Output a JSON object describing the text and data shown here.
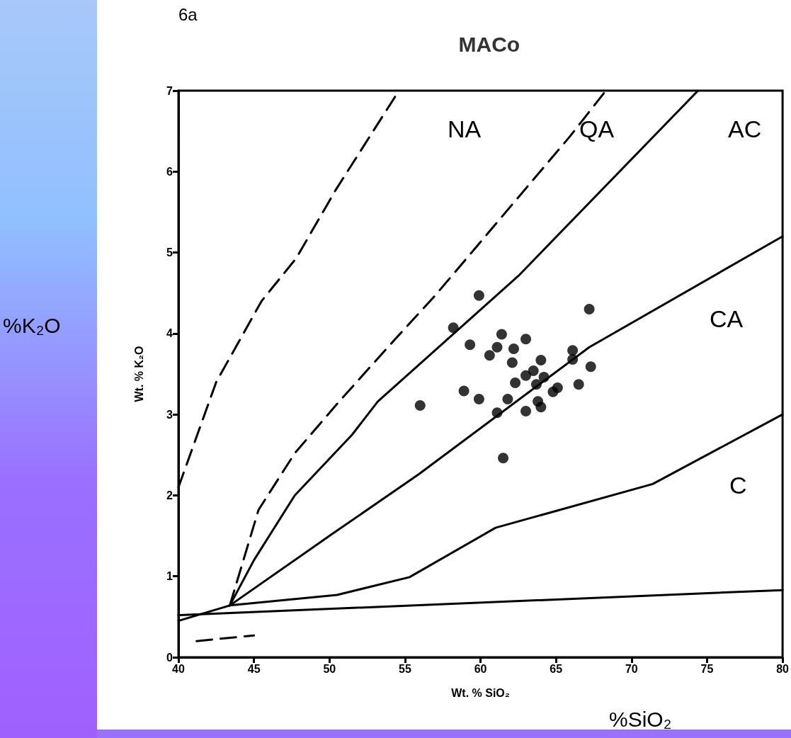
{
  "chart_data": {
    "type": "scatter",
    "title": "MACo",
    "xlabel": "Wt. % SiO₂",
    "ylabel": "Wt. % K₂O",
    "xlim": [
      40,
      80
    ],
    "xticks": [
      40,
      45,
      50,
      55,
      60,
      65,
      70,
      75,
      80
    ],
    "ylim": [
      0,
      7
    ],
    "yticks": [
      0,
      1,
      2,
      3,
      4,
      5,
      6,
      7
    ],
    "grid": false,
    "annotations": [
      "6a",
      "%K₂O",
      "%SiO₂",
      "NA",
      "QA",
      "AC",
      "CA",
      "C"
    ],
    "series": [
      {
        "color": "#000000",
        "marker": "circle",
        "x": [
          59.9,
          67.2,
          58.2,
          61.4,
          63.0,
          59.3,
          61.1,
          62.2,
          60.6,
          66.1,
          64.0,
          62.1,
          66.1,
          63.5,
          63.0,
          64.2,
          67.3,
          62.3,
          63.7,
          65.1,
          64.8,
          66.5,
          58.9,
          59.9,
          61.8,
          56.0,
          63.8,
          64.0,
          61.1,
          63.0,
          61.5
        ],
        "values": [
          4.47,
          4.3,
          4.07,
          3.99,
          3.93,
          3.86,
          3.83,
          3.81,
          3.73,
          3.79,
          3.67,
          3.64,
          3.68,
          3.54,
          3.48,
          3.46,
          3.59,
          3.39,
          3.37,
          3.33,
          3.28,
          3.37,
          3.29,
          3.19,
          3.19,
          3.11,
          3.16,
          3.09,
          3.02,
          3.04,
          2.46
        ]
      },
      {
        "type": "line",
        "color": "#000000",
        "marker": "none",
        "line_style": "solid",
        "x": [
          40,
          80
        ],
        "values": [
          0.52,
          0.83
        ]
      },
      {
        "type": "line",
        "color": "#000000",
        "marker": "none",
        "line_style": "dashed",
        "x": [
          41.2,
          45
        ],
        "values": [
          0.2,
          0.27
        ]
      },
      {
        "type": "line",
        "color": "#000000",
        "marker": "none",
        "line_style": "solid",
        "x": [
          40,
          43.4,
          50.5,
          55.3,
          61,
          71.4,
          80
        ],
        "values": [
          0.45,
          0.64,
          0.77,
          0.99,
          1.6,
          2.14,
          3.0
        ]
      },
      {
        "type": "line",
        "color": "#000000",
        "marker": "none",
        "line_style": "solid",
        "x": [
          43.4,
          50,
          55.9,
          67.2,
          80
        ],
        "values": [
          0.64,
          1.5,
          2.26,
          3.83,
          5.2
        ]
      },
      {
        "type": "line",
        "color": "#000000",
        "marker": "none",
        "line_style": "solid",
        "x": [
          43.4,
          45,
          47.7,
          51.5,
          53.2,
          62.5,
          74.4
        ],
        "values": [
          0.64,
          1.2,
          2.0,
          2.75,
          3.16,
          4.71,
          7
        ]
      },
      {
        "type": "line",
        "color": "#000000",
        "marker": "none",
        "line_style": "dashed",
        "x": [
          43.4,
          45.3,
          47.7,
          50.5,
          54.3,
          57,
          65.9,
          68.3
        ],
        "values": [
          0.64,
          1.82,
          2.52,
          3.13,
          3.92,
          4.47,
          6.43,
          7
        ]
      },
      {
        "type": "line",
        "color": "#000000",
        "marker": "none",
        "line_style": "dashed",
        "x": [
          40,
          42.5,
          45.5,
          47.8,
          50.4,
          54.6
        ],
        "values": [
          2.1,
          3.4,
          4.4,
          4.93,
          5.77,
          7
        ]
      }
    ]
  }
}
